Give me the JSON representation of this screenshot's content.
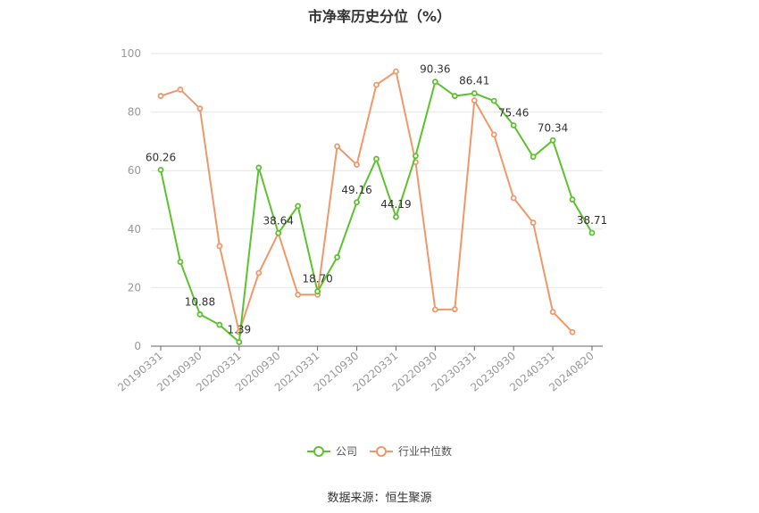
{
  "chart_data": {
    "type": "line",
    "title": "市净率历史分位（%）",
    "xlabel": "",
    "ylabel": "",
    "ylim": [
      0,
      100
    ],
    "yticks": [
      0,
      20,
      40,
      60,
      80,
      100
    ],
    "xtick_labels": [
      "20190331",
      "20190930",
      "20200331",
      "20200930",
      "20210331",
      "20210930",
      "20220331",
      "20220930",
      "20230331",
      "20230930",
      "20240331",
      "20240820"
    ],
    "x": [
      "20190331",
      "20190630",
      "20190930",
      "20191231",
      "20200331",
      "20200630",
      "20200930",
      "20201231",
      "20210331",
      "20210630",
      "20210930",
      "20211231",
      "20220331",
      "20220630",
      "20220930",
      "20221231",
      "20230331",
      "20230630",
      "20230930",
      "20231231",
      "20240331",
      "20240630",
      "20240820"
    ],
    "series": [
      {
        "name": "公司",
        "color": "#5cc22f",
        "values": [
          60.26,
          28.8,
          10.88,
          7.3,
          1.39,
          61.0,
          38.64,
          47.9,
          18.7,
          30.4,
          49.16,
          64.0,
          44.19,
          65.0,
          90.36,
          85.5,
          86.41,
          83.8,
          75.46,
          64.7,
          70.34,
          50.1,
          38.71
        ],
        "labels": {
          "0": "60.26",
          "2": "10.88",
          "4": "1.39",
          "6": "38.64",
          "8": "18.70",
          "10": "49.16",
          "12": "44.19",
          "14": "90.36",
          "16": "86.41",
          "18": "75.46",
          "20": "70.34",
          "22": "38.71"
        }
      },
      {
        "name": "行业中位数",
        "color": "#f0986a",
        "values": [
          85.5,
          87.7,
          81.2,
          34.2,
          4.8,
          25.0,
          38.6,
          17.6,
          17.6,
          68.3,
          62.0,
          89.3,
          93.9,
          62.9,
          12.5,
          12.6,
          84.0,
          72.3,
          50.6,
          42.2,
          11.7,
          4.8,
          null
        ]
      }
    ],
    "grid": true,
    "legend_position": "bottom"
  },
  "source": "数据来源：恒生聚源"
}
